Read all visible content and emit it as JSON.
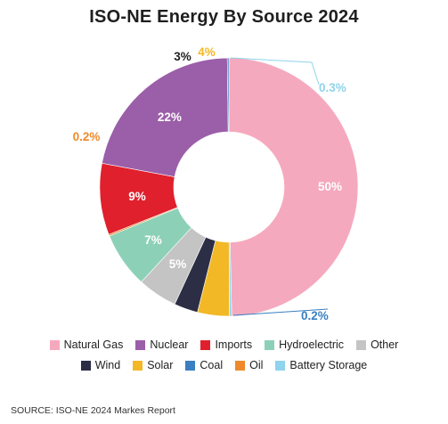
{
  "chart_data": {
    "type": "pie",
    "title": "ISO-NE Energy By Source 2024",
    "categories": [
      "Natural Gas",
      "Nuclear",
      "Imports",
      "Hydroelectric",
      "Other",
      "Wind",
      "Solar",
      "Coal",
      "Oil",
      "Battery Storage"
    ],
    "values": [
      50,
      22,
      9,
      7,
      5,
      3,
      4,
      0.2,
      0.2,
      0.3
    ],
    "data_labels": [
      "50%",
      "22%",
      "9%",
      "7%",
      "5%",
      "3%",
      "4%",
      "0.2%",
      "0.2%",
      "0.3%"
    ],
    "colors": [
      "#f5a9be",
      "#9b5ea8",
      "#e0202d",
      "#8dd0b8",
      "#c4c4c4",
      "#2b2e44",
      "#f2b826",
      "#3a7fc1",
      "#ee8a2c",
      "#8fd3ec"
    ],
    "label_colors": [
      "#ffffff",
      "#ffffff",
      "#ffffff",
      "#ffffff",
      "#ffffff",
      "#1f1f1f",
      "#f2b826",
      "#3a7fc1",
      "#ee8a2c",
      "#8fd3ec"
    ],
    "legend_rows": [
      [
        "Natural Gas",
        "Nuclear",
        "Imports",
        "Hydroelectric",
        "Other"
      ],
      [
        "Wind",
        "Solar",
        "Coal",
        "Oil",
        "Battery Storage"
      ]
    ],
    "legend_placement": "bottom",
    "donut": true
  },
  "source": "SOURCE: ISO-NE 2024 Markes Report"
}
